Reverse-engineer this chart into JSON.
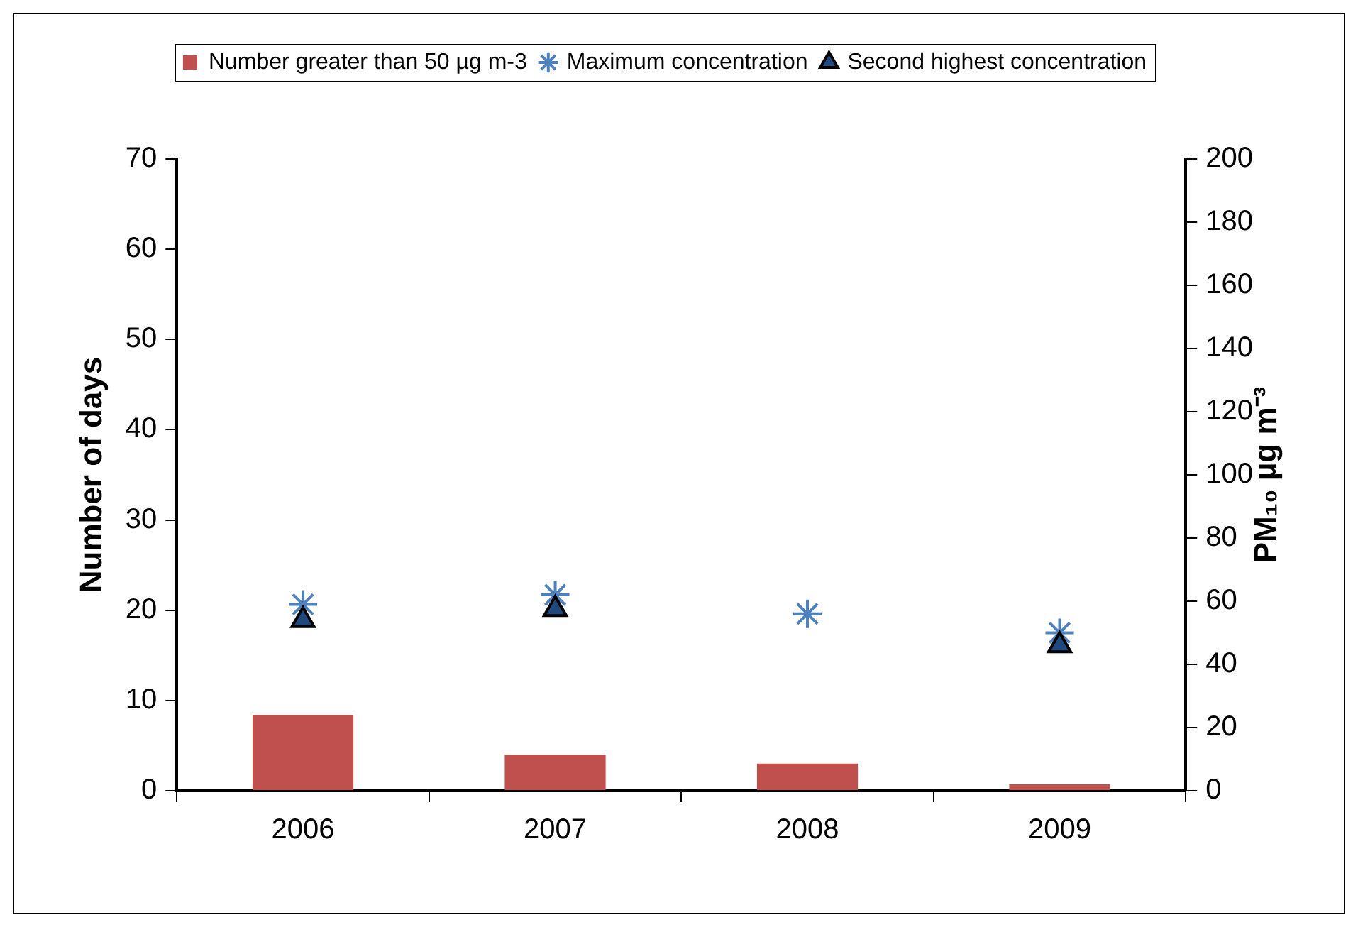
{
  "chart_data": {
    "type": "bar",
    "xlabel": null,
    "ylabel": "Number of days",
    "y2label": "PM₁₀ µg m⁻³",
    "categories": [
      "2006",
      "2007",
      "2008",
      "2009"
    ],
    "series": [
      {
        "name": "Number greater than 50 µg m-3",
        "color": "#c0504d",
        "values": [
          8.4,
          4,
          3,
          0.7
        ]
      },
      {
        "name": "Maximum concentration",
        "type": "scatter",
        "axis": "y2",
        "marker": "cross",
        "color": "#4f81bd",
        "values": [
          59,
          62,
          56,
          50
        ]
      },
      {
        "name": "Second highest concentration",
        "type": "scatter",
        "axis": "y2",
        "marker": "triangle",
        "color": "#1f497d",
        "values": [
          54,
          57.5,
          null,
          46
        ]
      }
    ],
    "ylim": [
      0,
      70
    ],
    "yticks": [
      0,
      10,
      20,
      30,
      40,
      50,
      60,
      70
    ],
    "y2lim": [
      0,
      200
    ],
    "y2ticks": [
      0,
      20,
      40,
      60,
      80,
      100,
      120,
      140,
      160,
      180,
      200
    ],
    "grid": false,
    "legend": "top"
  }
}
